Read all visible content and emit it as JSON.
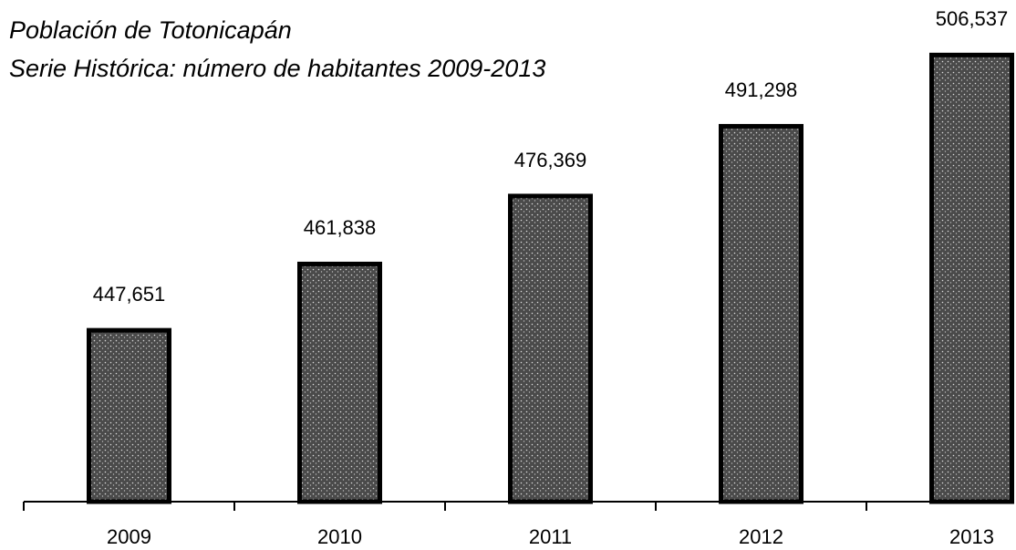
{
  "chart_data": {
    "type": "bar",
    "title": "Población de Totonicapán",
    "subtitle": "Serie Histórica: número de habitantes 2009-2013",
    "categories": [
      "2009",
      "2010",
      "2011",
      "2012",
      "2013"
    ],
    "values": [
      447651,
      461838,
      476369,
      491298,
      506537
    ],
    "value_labels": [
      "447,651",
      "461,838",
      "476,369",
      "491,298",
      "506,537"
    ],
    "color": "#555555",
    "ylim": [
      411000,
      510500
    ]
  }
}
